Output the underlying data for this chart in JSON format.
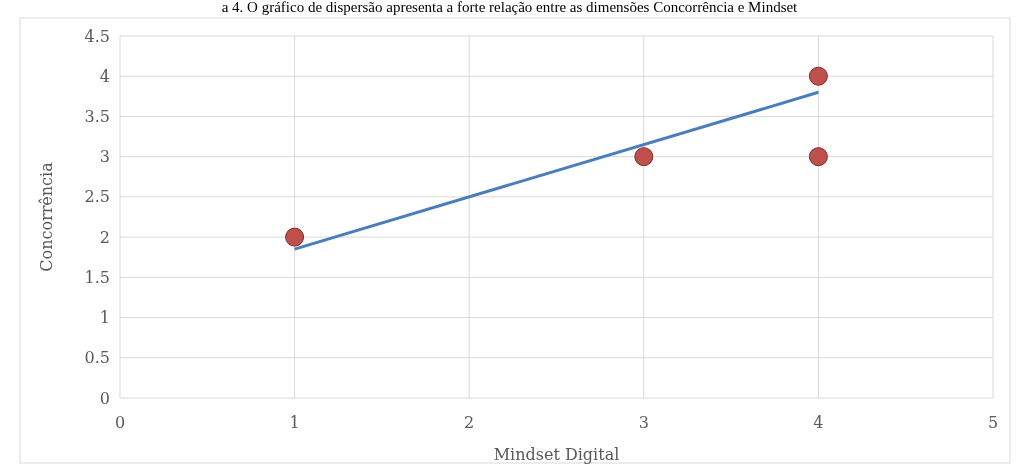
{
  "chart_data": {
    "type": "scatter",
    "title": "a 4. O gráfico de dispersão apresenta a forte relação entre as dimensões Concorrência e Mindset",
    "xlabel": "Mindset Digital",
    "ylabel": "Concorrência",
    "series": [
      {
        "color": "#c0504d",
        "x": [
          1,
          3,
          4,
          4
        ],
        "values": [
          2,
          3,
          4,
          3
        ],
        "marker": "circle"
      },
      {
        "type": "line",
        "color": "#4a7ebb",
        "x": [
          1,
          4
        ],
        "values": [
          1.85,
          3.8
        ],
        "marker": "none"
      }
    ],
    "xlim": [
      0,
      5
    ],
    "xticks": [
      0,
      1,
      2,
      3,
      4,
      5
    ],
    "ylim": [
      0,
      4.5
    ],
    "yticks": [
      0,
      0.5,
      1,
      1.5,
      2,
      2.5,
      3,
      3.5,
      4,
      4.5
    ],
    "grid": true
  }
}
